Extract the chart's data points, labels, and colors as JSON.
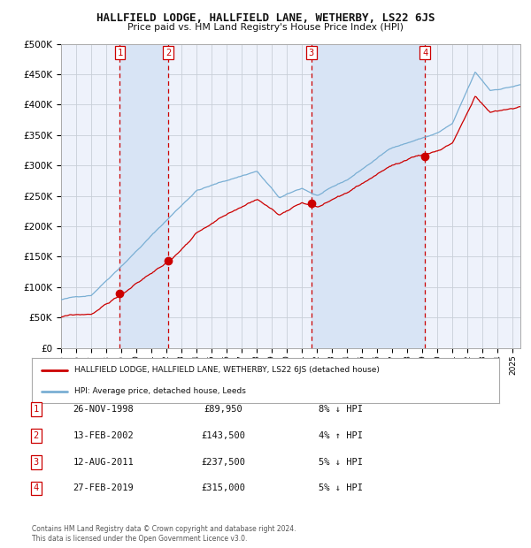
{
  "title": "HALLFIELD LODGE, HALLFIELD LANE, WETHERBY, LS22 6JS",
  "subtitle": "Price paid vs. HM Land Registry's House Price Index (HPI)",
  "legend_red": "HALLFIELD LODGE, HALLFIELD LANE, WETHERBY, LS22 6JS (detached house)",
  "legend_blue": "HPI: Average price, detached house, Leeds",
  "footer1": "Contains HM Land Registry data © Crown copyright and database right 2024.",
  "footer2": "This data is licensed under the Open Government Licence v3.0.",
  "transactions": [
    {
      "num": 1,
      "date": "26-NOV-1998",
      "price": 89950,
      "pct": "8%",
      "dir": "↓",
      "year_x": 1998.9
    },
    {
      "num": 2,
      "date": "13-FEB-2002",
      "price": 143500,
      "pct": "4%",
      "dir": "↑",
      "year_x": 2002.12
    },
    {
      "num": 3,
      "date": "12-AUG-2011",
      "price": 237500,
      "pct": "5%",
      "dir": "↓",
      "year_x": 2011.62
    },
    {
      "num": 4,
      "date": "27-FEB-2019",
      "price": 315000,
      "pct": "5%",
      "dir": "↓",
      "year_x": 2019.16
    }
  ],
  "background_color": "#ffffff",
  "plot_bg_color": "#eef2fb",
  "grid_color": "#c8cfd8",
  "red_color": "#cc0000",
  "blue_color": "#7aafd4",
  "shade_color": "#d8e4f5",
  "ylim": [
    0,
    500000
  ],
  "yticks": [
    0,
    50000,
    100000,
    150000,
    200000,
    250000,
    300000,
    350000,
    400000,
    450000,
    500000
  ],
  "xmin": 1995.0,
  "xmax": 2025.5
}
